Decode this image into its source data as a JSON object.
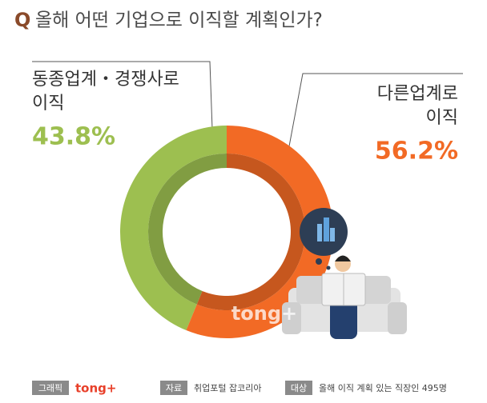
{
  "chart_data": {
    "type": "donut",
    "question_mark": "Q",
    "title": "올해 어떤 기업으로 이직할 계획인가?",
    "categories": [
      "동종업계・경쟁사로 이직",
      "다른업계로 이직"
    ],
    "values": [
      43.8,
      56.2
    ],
    "value_labels": [
      "43.8%",
      "56.2%"
    ],
    "colors": [
      "#9dbf50",
      "#f26a25"
    ],
    "watermark": "tong+",
    "footer": [
      {
        "tag": "그래픽",
        "text": "tong+"
      },
      {
        "tag": "자료",
        "text": "취업포털 잡코리아"
      },
      {
        "tag": "대상",
        "text": "올해 이직 계획 있는 직장인 495명"
      }
    ]
  }
}
